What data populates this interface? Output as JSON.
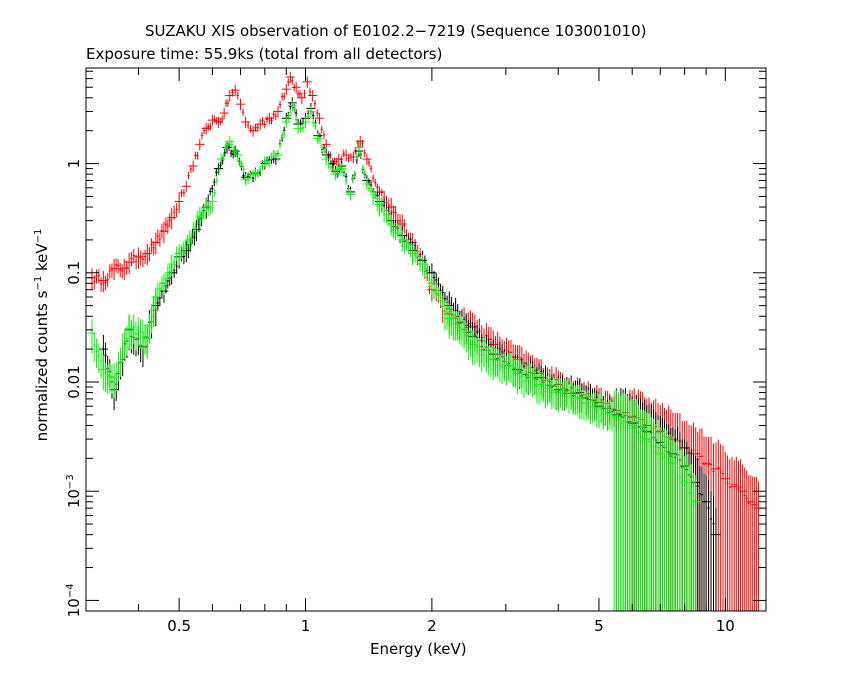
{
  "chart_data": {
    "type": "scatter",
    "title": "SUZAKU XIS observation of E0102.2−7219 (Sequence 103001010)",
    "subtitle": "Exposure time: 55.9ks (total from all detectors)",
    "xlabel": "Energy (keV)",
    "ylabel_main": "normalized counts s",
    "ylabel_sup1": "−1",
    "ylabel_mid": " keV",
    "ylabel_sup2": "−1",
    "xscale": "log",
    "yscale": "log",
    "xlim": [
      0.3,
      12.5
    ],
    "ylim": [
      8e-05,
      7.5
    ],
    "x_ticks": [
      {
        "value": 0.5,
        "label": "0.5"
      },
      {
        "value": 1,
        "label": "1"
      },
      {
        "value": 2,
        "label": "2"
      },
      {
        "value": 5,
        "label": "5"
      },
      {
        "value": 10,
        "label": "10"
      }
    ],
    "y_ticks": [
      {
        "value": 1,
        "label": "1",
        "base": "",
        "exp": ""
      },
      {
        "value": 0.1,
        "label": "0.1",
        "base": "",
        "exp": ""
      },
      {
        "value": 0.01,
        "label": "0.01",
        "base": "",
        "exp": ""
      },
      {
        "value": 0.001,
        "label": "",
        "base": "10",
        "exp": "−3"
      },
      {
        "value": 0.0001,
        "label": "",
        "base": "10",
        "exp": "−4"
      }
    ],
    "series": [
      {
        "color": "#ff0000",
        "points": [
          [
            0.31,
            0.09
          ],
          [
            0.33,
            0.085
          ],
          [
            0.35,
            0.11
          ],
          [
            0.37,
            0.11
          ],
          [
            0.38,
            0.125
          ],
          [
            0.4,
            0.14
          ],
          [
            0.42,
            0.15
          ],
          [
            0.44,
            0.19
          ],
          [
            0.46,
            0.24
          ],
          [
            0.48,
            0.32
          ],
          [
            0.5,
            0.45
          ],
          [
            0.52,
            0.62
          ],
          [
            0.54,
            0.95
          ],
          [
            0.56,
            1.5
          ],
          [
            0.58,
            2.1
          ],
          [
            0.6,
            2.5
          ],
          [
            0.62,
            2.4
          ],
          [
            0.64,
            2.9
          ],
          [
            0.66,
            4.2
          ],
          [
            0.68,
            4.7
          ],
          [
            0.7,
            3.5
          ],
          [
            0.72,
            2.4
          ],
          [
            0.75,
            2.0
          ],
          [
            0.78,
            2.3
          ],
          [
            0.82,
            2.6
          ],
          [
            0.86,
            3.0
          ],
          [
            0.9,
            4.8
          ],
          [
            0.92,
            6.2
          ],
          [
            0.95,
            5.0
          ],
          [
            0.98,
            4.0
          ],
          [
            1.01,
            5.6
          ],
          [
            1.04,
            4.2
          ],
          [
            1.08,
            2.6
          ],
          [
            1.12,
            1.5
          ],
          [
            1.16,
            1.0
          ],
          [
            1.2,
            1.1
          ],
          [
            1.25,
            1.2
          ],
          [
            1.3,
            1.15
          ],
          [
            1.35,
            1.6
          ],
          [
            1.4,
            1.1
          ],
          [
            1.5,
            0.55
          ],
          [
            1.6,
            0.4
          ],
          [
            1.7,
            0.28
          ],
          [
            1.8,
            0.19
          ],
          [
            1.9,
            0.13
          ],
          [
            2.0,
            0.07
          ],
          [
            2.2,
            0.042
          ],
          [
            2.5,
            0.032
          ],
          [
            2.8,
            0.022
          ],
          [
            3.2,
            0.016
          ],
          [
            3.6,
            0.012
          ],
          [
            4.0,
            0.0095
          ],
          [
            4.5,
            0.008
          ],
          [
            5.0,
            0.0065
          ],
          [
            5.5,
            0.0055
          ],
          [
            6.0,
            0.0048
          ],
          [
            6.5,
            0.004
          ],
          [
            7.0,
            0.0035
          ],
          [
            7.5,
            0.003
          ],
          [
            8.0,
            0.0025
          ],
          [
            8.5,
            0.0022
          ],
          [
            9.0,
            0.0018
          ],
          [
            9.5,
            0.0016
          ],
          [
            10.0,
            0.0013
          ],
          [
            10.5,
            0.0011
          ],
          [
            11.0,
            0.001
          ],
          [
            11.5,
            0.0008
          ],
          [
            12.0,
            0.0007
          ]
        ]
      },
      {
        "color": "#000000",
        "points": [
          [
            0.33,
            0.02
          ],
          [
            0.35,
            0.0085
          ],
          [
            0.38,
            0.03
          ],
          [
            0.41,
            0.021
          ],
          [
            0.44,
            0.05
          ],
          [
            0.46,
            0.068
          ],
          [
            0.48,
            0.1
          ],
          [
            0.5,
            0.14
          ],
          [
            0.52,
            0.16
          ],
          [
            0.55,
            0.25
          ],
          [
            0.58,
            0.4
          ],
          [
            0.62,
            0.9
          ],
          [
            0.65,
            1.4
          ],
          [
            0.68,
            1.3
          ],
          [
            0.72,
            0.75
          ],
          [
            0.76,
            0.82
          ],
          [
            0.8,
            1.0
          ],
          [
            0.85,
            1.1
          ],
          [
            0.9,
            2.6
          ],
          [
            0.93,
            3.6
          ],
          [
            0.96,
            2.3
          ],
          [
            1.0,
            2.6
          ],
          [
            1.03,
            3.2
          ],
          [
            1.07,
            1.8
          ],
          [
            1.12,
            1.2
          ],
          [
            1.18,
            0.85
          ],
          [
            1.22,
            0.95
          ],
          [
            1.28,
            0.55
          ],
          [
            1.34,
            1.3
          ],
          [
            1.4,
            0.7
          ],
          [
            1.5,
            0.45
          ],
          [
            1.6,
            0.3
          ],
          [
            1.7,
            0.22
          ],
          [
            1.8,
            0.16
          ],
          [
            1.9,
            0.13
          ],
          [
            2.0,
            0.1
          ],
          [
            2.2,
            0.05
          ],
          [
            2.5,
            0.026
          ],
          [
            2.8,
            0.018
          ],
          [
            3.2,
            0.013
          ],
          [
            3.6,
            0.011
          ],
          [
            4.0,
            0.0085
          ],
          [
            4.5,
            0.008
          ],
          [
            5.0,
            0.006
          ],
          [
            5.5,
            0.005
          ],
          [
            6.0,
            0.0042
          ],
          [
            6.5,
            0.0035
          ],
          [
            7.0,
            0.0028
          ],
          [
            7.5,
            0.0022
          ],
          [
            8.0,
            0.0017
          ],
          [
            8.5,
            0.0012
          ],
          [
            9.0,
            0.0008
          ],
          [
            9.5,
            0.0004
          ]
        ]
      },
      {
        "color": "#00ff00",
        "points": [
          [
            0.31,
            0.028
          ],
          [
            0.33,
            0.013
          ],
          [
            0.35,
            0.011
          ],
          [
            0.38,
            0.031
          ],
          [
            0.42,
            0.025
          ],
          [
            0.44,
            0.06
          ],
          [
            0.46,
            0.08
          ],
          [
            0.48,
            0.12
          ],
          [
            0.5,
            0.15
          ],
          [
            0.53,
            0.2
          ],
          [
            0.56,
            0.33
          ],
          [
            0.6,
            0.45
          ],
          [
            0.63,
            1.1
          ],
          [
            0.66,
            1.6
          ],
          [
            0.69,
            1.2
          ],
          [
            0.72,
            0.72
          ],
          [
            0.76,
            0.8
          ],
          [
            0.8,
            1.05
          ],
          [
            0.86,
            1.2
          ],
          [
            0.9,
            2.4
          ],
          [
            0.93,
            3.4
          ],
          [
            0.96,
            2.1
          ],
          [
            1.0,
            2.4
          ],
          [
            1.03,
            3.0
          ],
          [
            1.07,
            1.7
          ],
          [
            1.12,
            1.1
          ],
          [
            1.18,
            0.8
          ],
          [
            1.22,
            0.9
          ],
          [
            1.28,
            0.52
          ],
          [
            1.34,
            1.4
          ],
          [
            1.4,
            0.65
          ],
          [
            1.5,
            0.42
          ],
          [
            1.6,
            0.28
          ],
          [
            1.7,
            0.2
          ],
          [
            1.8,
            0.15
          ],
          [
            1.9,
            0.12
          ],
          [
            2.0,
            0.08
          ],
          [
            2.2,
            0.038
          ],
          [
            2.5,
            0.022
          ],
          [
            2.8,
            0.016
          ],
          [
            3.2,
            0.012
          ],
          [
            3.6,
            0.0095
          ],
          [
            4.0,
            0.008
          ],
          [
            4.5,
            0.007
          ],
          [
            5.0,
            0.0058
          ],
          [
            5.5,
            0.0048
          ],
          [
            6.0,
            0.004
          ],
          [
            6.5,
            0.003
          ],
          [
            7.0,
            0.0022
          ],
          [
            7.5,
            0.0018
          ],
          [
            8.0,
            0.0012
          ],
          [
            8.5,
            0.0008
          ]
        ]
      }
    ]
  }
}
